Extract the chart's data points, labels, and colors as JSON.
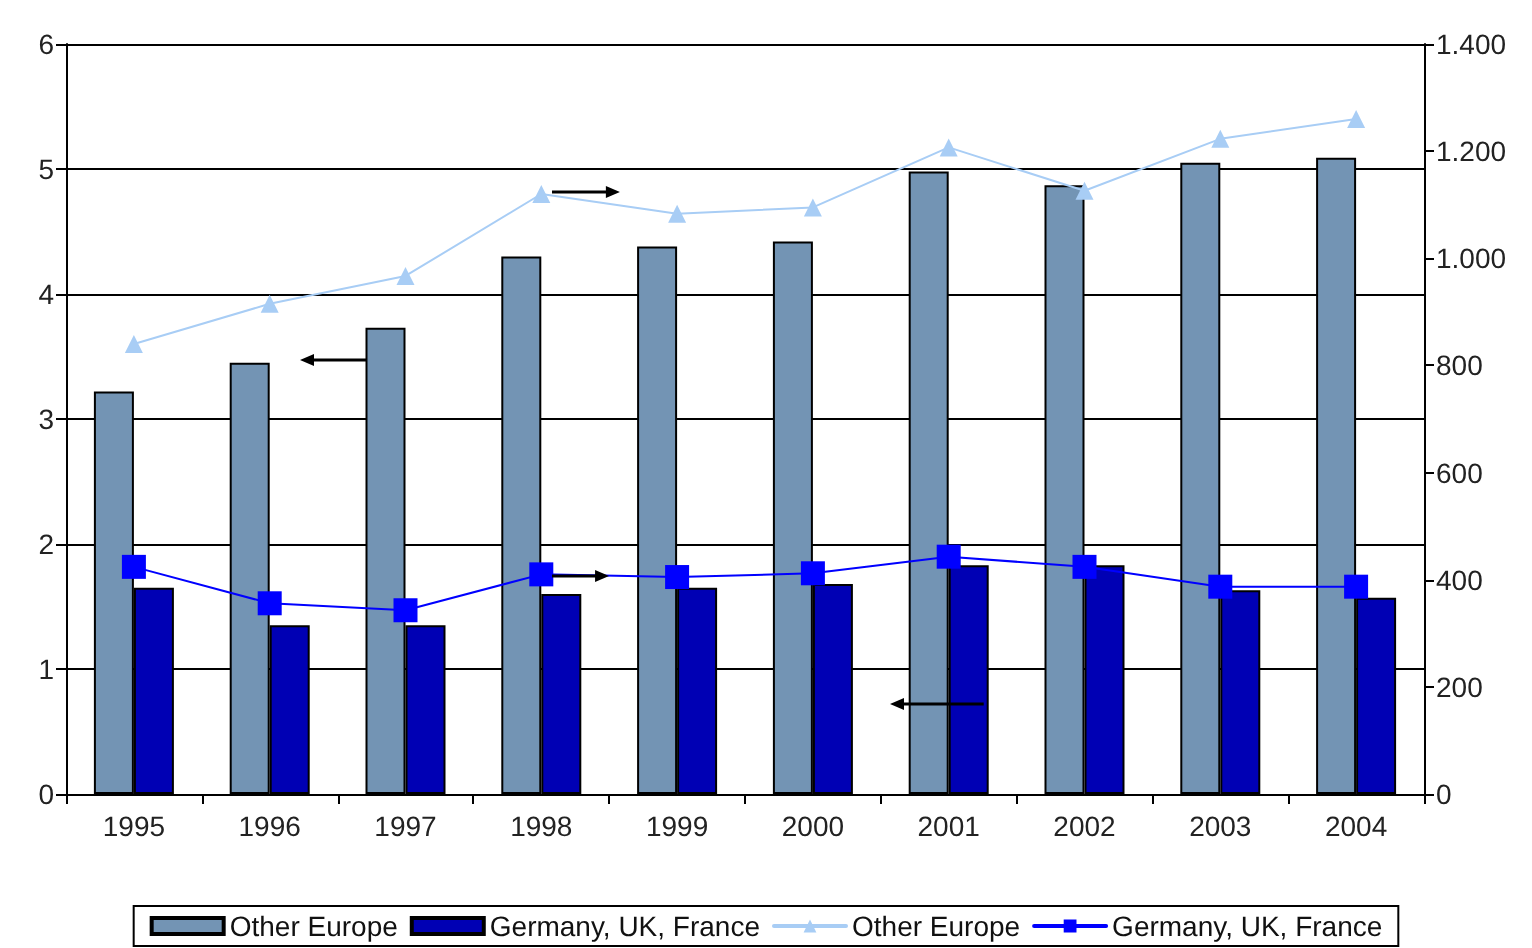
{
  "chart_data": {
    "type": "bar",
    "categories": [
      "1995",
      "1996",
      "1997",
      "1998",
      "1999",
      "2000",
      "2001",
      "2002",
      "2003",
      "2004"
    ],
    "series": [
      {
        "name": "Other Europe",
        "color": "#7394b4",
        "values": [
          3.22,
          3.45,
          3.73,
          4.3,
          4.38,
          4.42,
          4.98,
          4.87,
          5.05,
          5.09
        ]
      },
      {
        "name": "Germany, UK, France",
        "color": "#0000b4",
        "values": [
          1.65,
          1.35,
          1.35,
          1.6,
          1.65,
          1.68,
          1.83,
          1.83,
          1.63,
          1.57
        ]
      },
      {
        "name": "Other Europe",
        "type": "line",
        "axis": "y2",
        "color": "#a8cdf5",
        "marker": "triangle",
        "values": [
          840,
          915,
          967,
          1120,
          1083,
          1095,
          1207,
          1126,
          1223,
          1260
        ]
      },
      {
        "name": "Germany, UK, France",
        "type": "line",
        "axis": "y2",
        "color": "#0000ff",
        "marker": "square",
        "values": [
          424,
          356,
          343,
          410,
          405,
          412,
          443,
          424,
          387,
          387
        ]
      }
    ],
    "ylim": [
      0,
      6
    ],
    "yticks": [
      0,
      1,
      2,
      3,
      4,
      5,
      6
    ],
    "y2lim": [
      0,
      1400
    ],
    "y2ticks": [
      0,
      200,
      400,
      600,
      800,
      {
        "value": 1000,
        "label": "1.000"
      },
      {
        "value": 1200,
        "label": "1.200"
      },
      {
        "value": 1400,
        "label": "1.400"
      }
    ],
    "grid": "y",
    "legend": "bottom"
  }
}
